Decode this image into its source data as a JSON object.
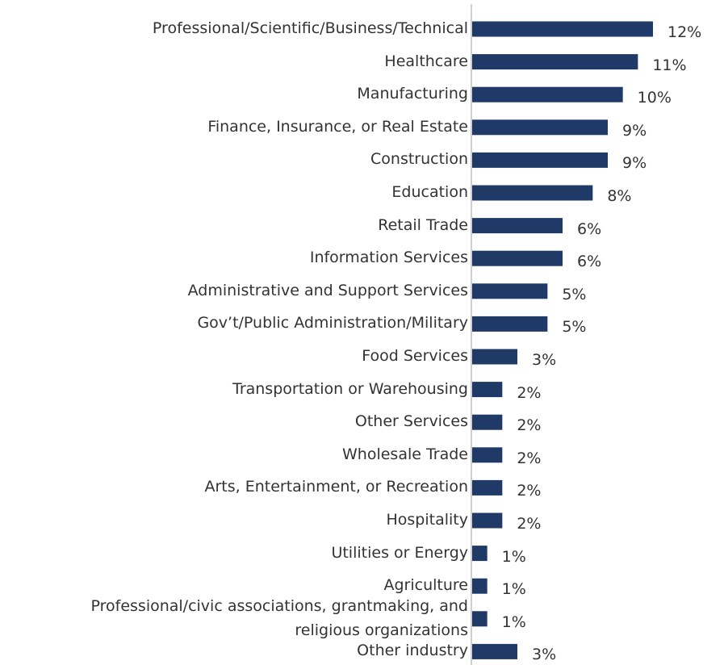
{
  "chart_data": {
    "type": "hbar",
    "categories": [
      "Professional/Scientific/Business/Technical",
      "Healthcare",
      "Manufacturing",
      "Finance, Insurance, or Real Estate",
      "Construction",
      "Education",
      "Retail Trade",
      "Information Services",
      "Administrative and Support Services",
      "Gov’t/Public Administration/Military",
      "Food Services",
      "Transportation or Warehousing",
      "Other Services",
      "Wholesale Trade",
      "Arts, Entertainment, or Recreation",
      "Hospitality",
      "Utilities or Energy",
      "Agriculture",
      "Professional/civic associations, grantmaking, and\nreligious organizations",
      "Other industry"
    ],
    "values": [
      12,
      11,
      10,
      9,
      9,
      8,
      6,
      6,
      5,
      5,
      3,
      2,
      2,
      2,
      2,
      2,
      1,
      1,
      1,
      3
    ],
    "value_labels": [
      "12%",
      "11%",
      "10%",
      "9%",
      "9%",
      "8%",
      "6%",
      "6%",
      "5%",
      "5%",
      "3%",
      "2%",
      "2%",
      "2%",
      "2%",
      "2%",
      "1%",
      "1%",
      "1%",
      "3%"
    ],
    "color": "#1f3a66",
    "xlim": [
      0,
      12
    ]
  }
}
